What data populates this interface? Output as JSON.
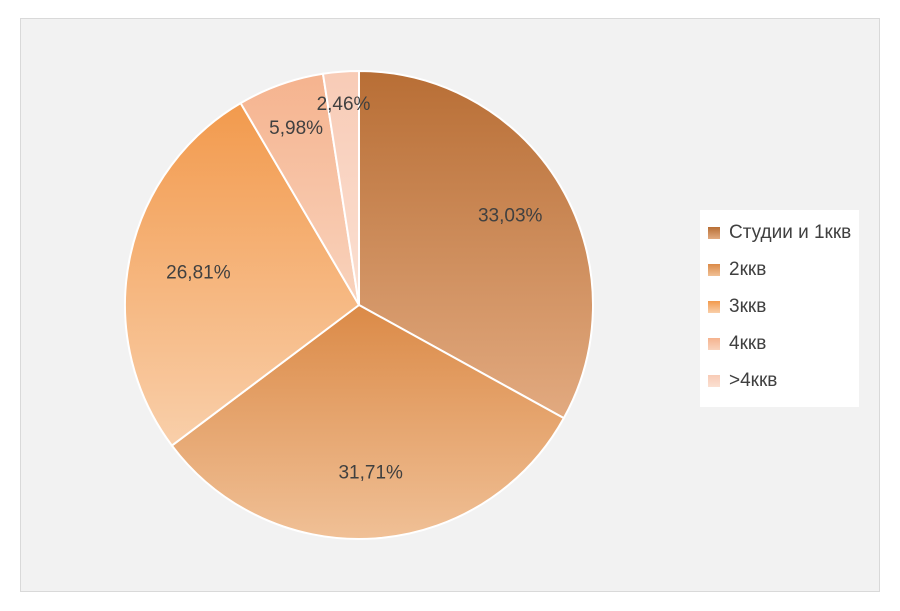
{
  "chart_data": {
    "type": "pie",
    "start_angle_deg": 0,
    "direction": "clockwise",
    "legend_position": "right",
    "slices": [
      {
        "name": "Студии и 1ккв",
        "value": 33.03,
        "label": "33,03%",
        "color_top": "#b86e35",
        "color_bottom": "#e2aa80"
      },
      {
        "name": "2ккв",
        "value": 31.71,
        "label": "31,71%",
        "color_top": "#db8a47",
        "color_bottom": "#f0c096"
      },
      {
        "name": "3ккв",
        "value": 26.81,
        "label": "26,81%",
        "color_top": "#f29a4d",
        "color_bottom": "#f9cfaa"
      },
      {
        "name": "4ккв",
        "value": 5.98,
        "label": "5,98%",
        "color_top": "#f5b38e",
        "color_bottom": "#f9d3bd"
      },
      {
        "name": ">4ккв",
        "value": 2.46,
        "label": "2,46%",
        "color_top": "#f8cbb6",
        "color_bottom": "#fbe0d2"
      }
    ]
  }
}
